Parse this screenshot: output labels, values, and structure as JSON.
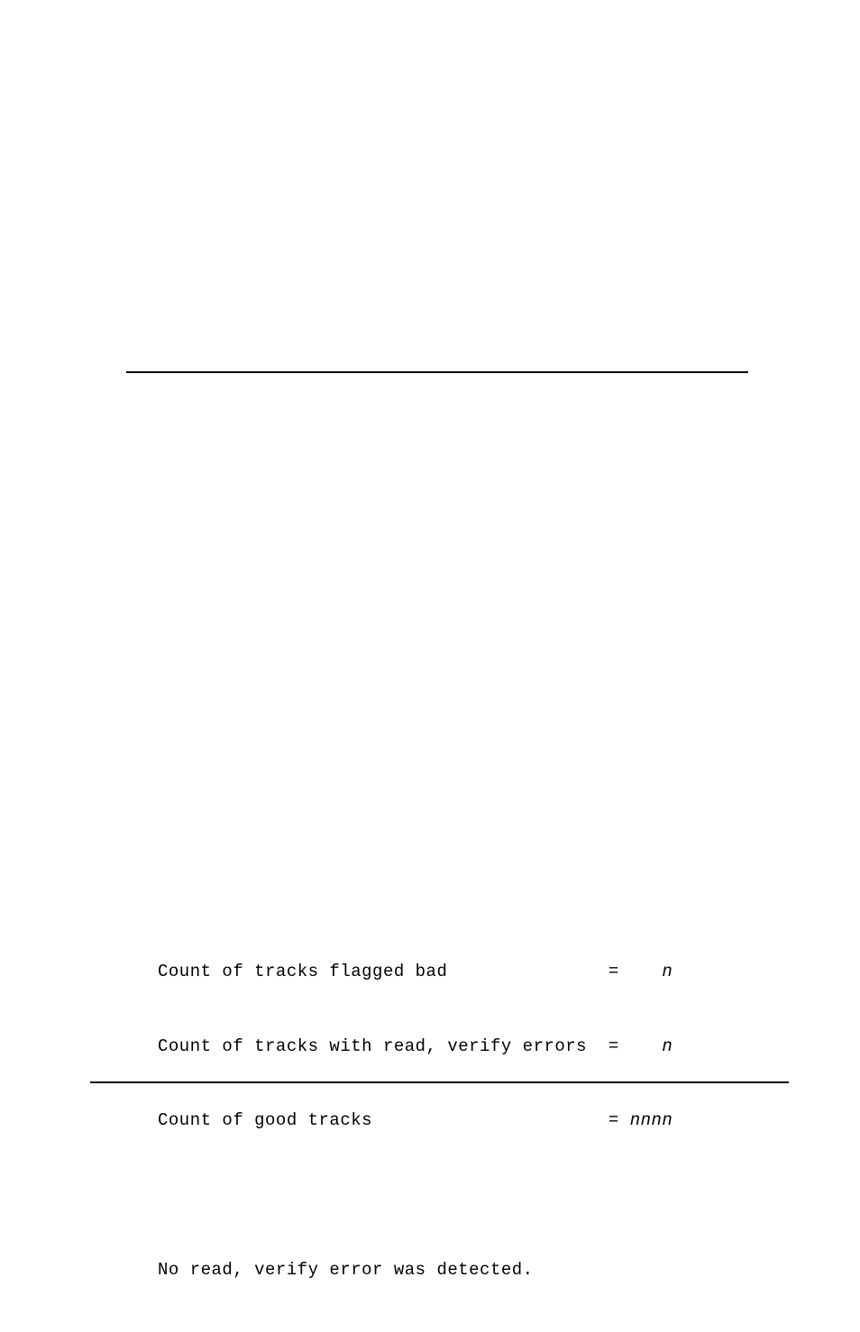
{
  "report": {
    "rows": [
      {
        "label": "Count of tracks flagged bad              ",
        "eq": "=",
        "val": "   n"
      },
      {
        "label": "Count of tracks with read, verify errors ",
        "eq": "=",
        "val": "   n"
      },
      {
        "label": "Count of good tracks                     ",
        "eq": "=",
        "val": "nnnn"
      }
    ],
    "footer": "No read, verify error was detected."
  }
}
